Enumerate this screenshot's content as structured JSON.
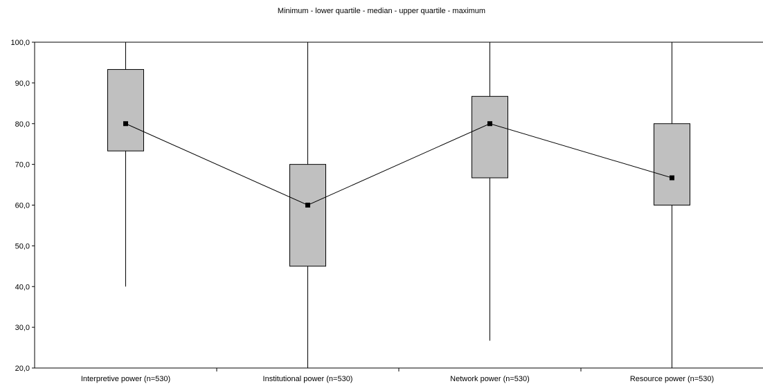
{
  "chart_data": {
    "type": "box",
    "title": "Minimum - lower quartile - median - upper quartile - maximum",
    "categories": [
      "Interpretive power (n=530)",
      "Institutional power (n=530)",
      "Network power (n=530)",
      "Resource power (n=530)"
    ],
    "series": [
      {
        "stat": "minimum",
        "values": [
          40.0,
          20.0,
          26.7,
          20.0
        ]
      },
      {
        "stat": "lower quartile",
        "values": [
          73.3,
          45.0,
          66.7,
          60.0
        ]
      },
      {
        "stat": "median",
        "values": [
          80.0,
          60.0,
          80.0,
          66.7
        ]
      },
      {
        "stat": "upper quartile",
        "values": [
          93.3,
          70.0,
          86.7,
          80.0
        ]
      },
      {
        "stat": "maximum",
        "values": [
          100.0,
          100.0,
          100.0,
          100.0
        ]
      }
    ],
    "y_ticks": [
      "20,0",
      "30,0",
      "40,0",
      "50,0",
      "60,0",
      "70,0",
      "80,0",
      "90,0",
      "100,0"
    ],
    "ylim": [
      20,
      100
    ],
    "median_line": true,
    "grid": false,
    "colors": {
      "box_fill": "#c0c0c0",
      "stroke": "#000000"
    }
  }
}
